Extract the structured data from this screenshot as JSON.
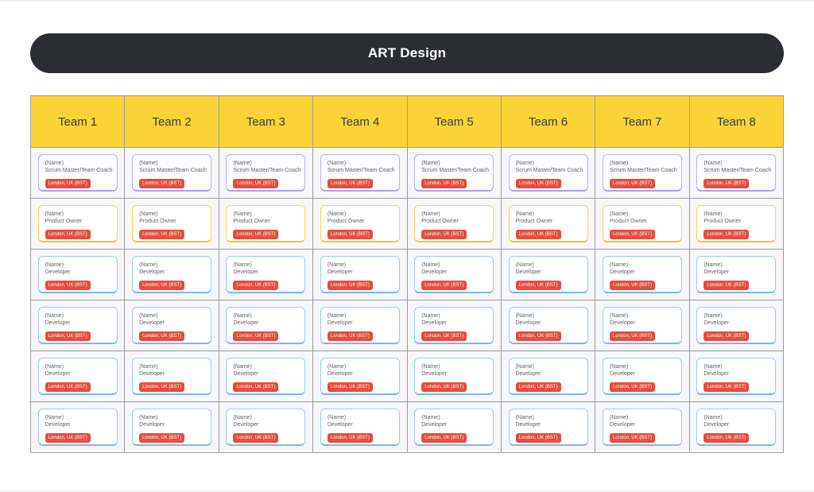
{
  "header": {
    "title": "ART Design"
  },
  "teams": [
    "Team 1",
    "Team 2",
    "Team 3",
    "Team 4",
    "Team 5",
    "Team 6",
    "Team 7",
    "Team 8"
  ],
  "rows": [
    {
      "type": "scrum-master",
      "name": "(Name)",
      "role": "Scrum Master/Team Coach",
      "location": "London, UK (BST)"
    },
    {
      "type": "product-owner",
      "name": "(Name)",
      "role": "Product Owner",
      "location": "London, UK (BST)"
    },
    {
      "type": "developer",
      "name": "(Name)",
      "role": "Developer",
      "location": "London, UK (BST)"
    },
    {
      "type": "developer",
      "name": "(Name)",
      "role": "Developer",
      "location": "London, UK (BST)"
    },
    {
      "type": "developer",
      "name": "(Name)",
      "role": "Developer",
      "location": "London, UK (BST)"
    },
    {
      "type": "developer",
      "name": "(Name)",
      "role": "Developer",
      "location": "London, UK (BST)"
    }
  ],
  "colors": {
    "header_pill_bg": "#2b2d33",
    "header_pill_text": "#ffffff",
    "team_header_bg": "#fbd335",
    "team_header_text": "#3b3b3b",
    "grid_line": "#9b9b9b",
    "cell_bg": "#f7f7f9",
    "card_bg": "#ffffff",
    "scrum_master_border": "#b9b4f0",
    "product_owner_border": "#fcd24b",
    "developer_border": "#9ec8f7",
    "badge_bg": "#e74c3c",
    "badge_text": "#ffffff",
    "card_text": "#5f6368"
  }
}
